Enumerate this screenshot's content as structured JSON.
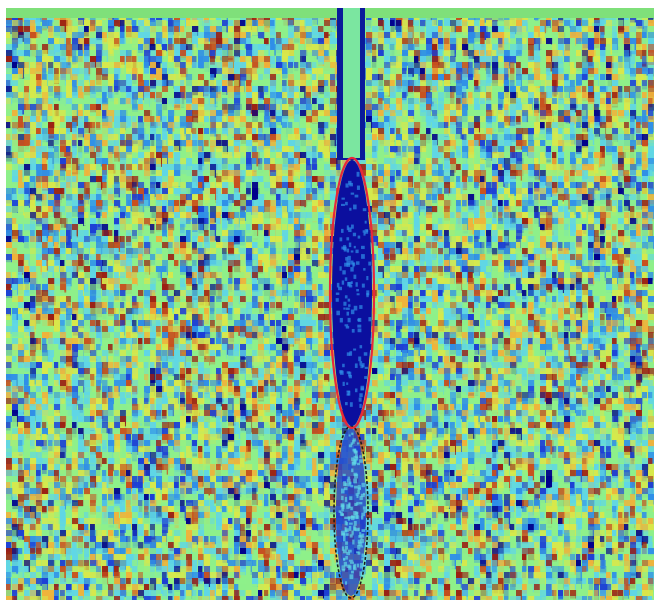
{
  "figure": {
    "kind": "full-field strain map with a vertical notch and crack-tip process zone",
    "colormap": [
      "#00008b",
      "#1c3fd6",
      "#2f8fe8",
      "#5fd6e6",
      "#8ef08a",
      "#d8e84a",
      "#f0b23a",
      "#c8501e",
      "#9c1f12"
    ],
    "background_color": "#ffffff",
    "top_band_color": "#7fe07a"
  },
  "notch": {
    "fill_color": "#7be6a0",
    "edge_color": "#0a1a9a"
  },
  "zones": [
    {
      "name": "upper-fracture-process-zone",
      "outline_color": "#e8283c",
      "fill_color": "#0b0f9e"
    },
    {
      "name": "lower-damage-zone",
      "outline_color": "#1b1b1b",
      "fill_color": "#2340c8"
    }
  ]
}
